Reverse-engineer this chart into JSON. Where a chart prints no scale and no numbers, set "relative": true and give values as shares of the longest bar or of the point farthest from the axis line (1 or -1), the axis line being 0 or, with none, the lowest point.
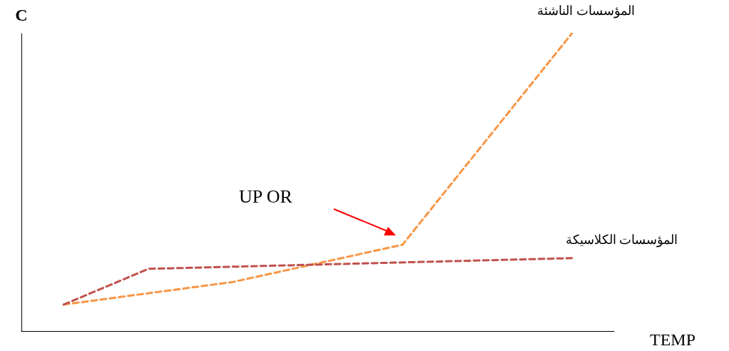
{
  "chart_data": {
    "type": "line",
    "relative": true,
    "xlabel": "TEMP",
    "ylabel": "C",
    "line_style": "dashed",
    "marker": "none",
    "grid": false,
    "legend": false,
    "categories": [
      null,
      null,
      null,
      null,
      null,
      null,
      null
    ],
    "series": [
      {
        "name": "المؤسسات الناشئة",
        "color": "#f79646",
        "values": [
          0.089,
          null,
          0.165,
          null,
          0.29,
          null,
          1
        ]
      },
      {
        "name": "المؤسسات الكلاسيكة",
        "color": "#c0504d",
        "values": [
          0.089,
          0.209,
          null,
          null,
          null,
          null,
          0.245
        ]
      }
    ],
    "annotations": [
      "UP OR"
    ]
  }
}
